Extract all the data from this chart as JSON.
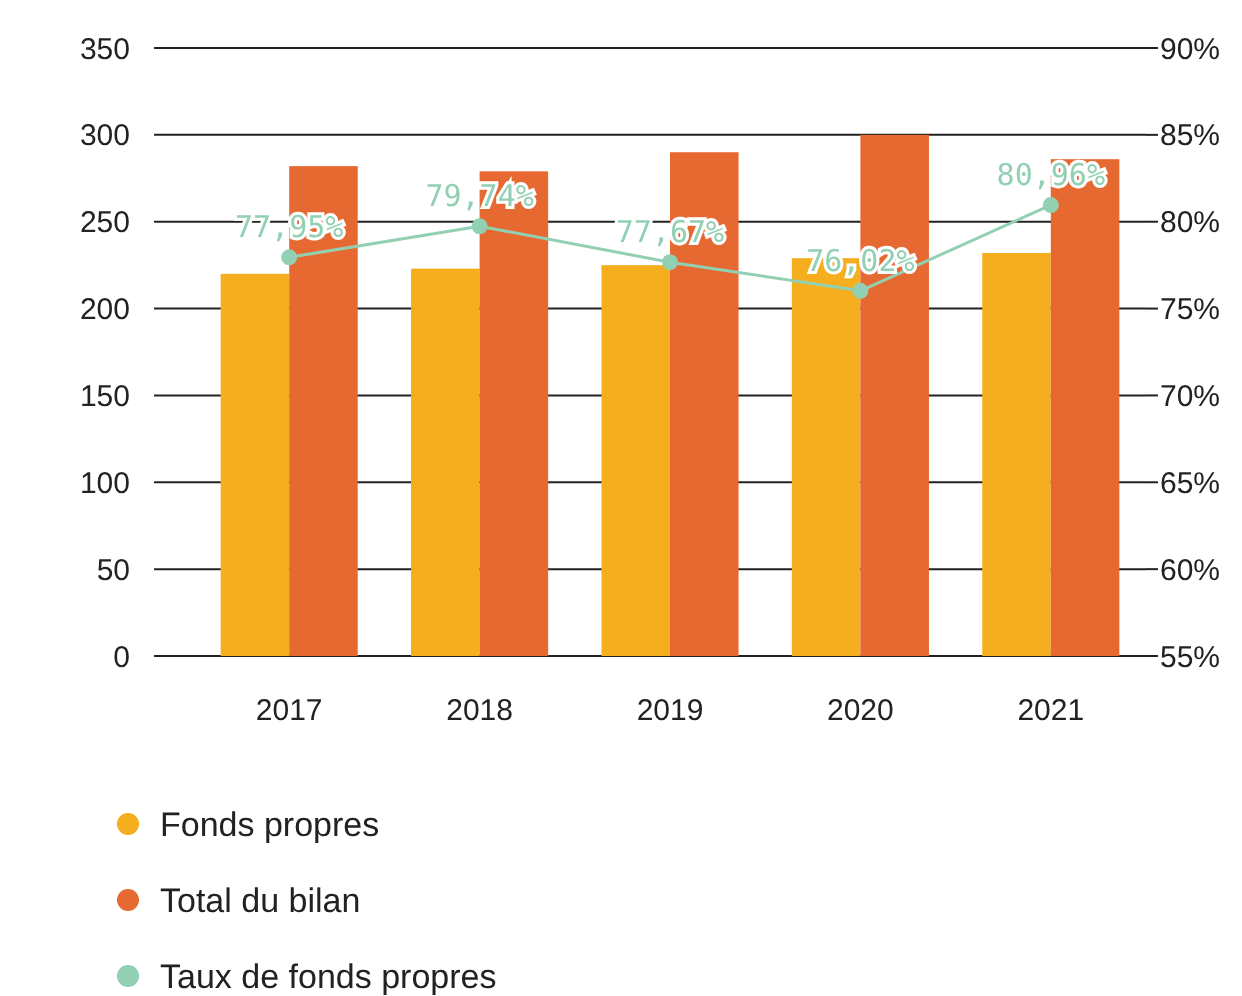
{
  "chart_data": {
    "type": "bar",
    "categories": [
      "2017",
      "2018",
      "2019",
      "2020",
      "2021"
    ],
    "series": [
      {
        "name": "Fonds propres",
        "color": "#f4ae1e",
        "values": [
          220,
          223,
          225,
          229,
          232
        ]
      },
      {
        "name": "Total du bilan",
        "color": "#e76932",
        "values": [
          282,
          279,
          290,
          300,
          286
        ]
      },
      {
        "name": "Taux de fonds propres",
        "type": "line",
        "axis": "y2",
        "color": "#92d0b3",
        "marker": "circle",
        "values": [
          77.95,
          79.74,
          77.67,
          76.02,
          80.96
        ],
        "value_labels": [
          "77,95%",
          "79,74%",
          "77,67%",
          "76,02%",
          "80,96%"
        ]
      }
    ],
    "ylim": [
      0,
      350
    ],
    "yticks": [
      0,
      50,
      100,
      150,
      200,
      250,
      300,
      350
    ],
    "y2lim": [
      55,
      90
    ],
    "y2ticks": [
      {
        "value": 55,
        "label": "55%"
      },
      {
        "value": 60,
        "label": "60%"
      },
      {
        "value": 65,
        "label": "65%"
      },
      {
        "value": 70,
        "label": "70%"
      },
      {
        "value": 75,
        "label": "75%"
      },
      {
        "value": 80,
        "label": "80%"
      },
      {
        "value": 85,
        "label": "85%"
      },
      {
        "value": 90,
        "label": "90%"
      }
    ],
    "grid": "y",
    "legend": "bottom"
  }
}
